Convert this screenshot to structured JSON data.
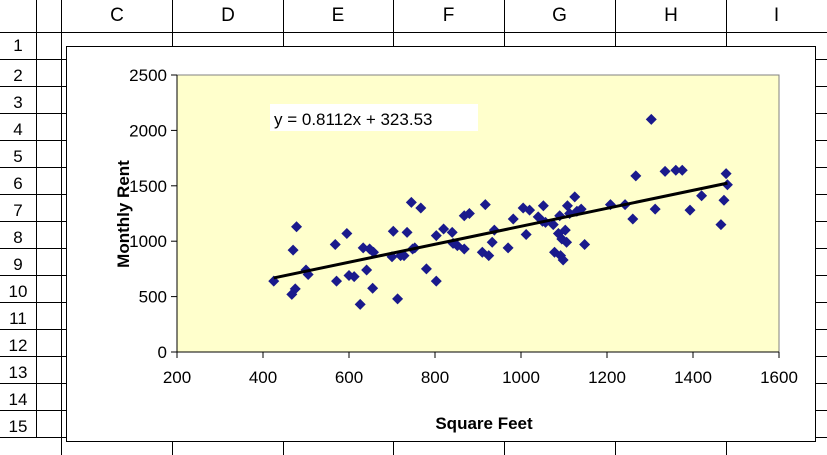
{
  "sheet": {
    "column_headers": [
      "C",
      "D",
      "E",
      "F",
      "G",
      "H",
      "I"
    ],
    "row_headers": [
      "1",
      "2",
      "3",
      "4",
      "5",
      "6",
      "7",
      "8",
      "9",
      "10",
      "11",
      "12",
      "13",
      "14",
      "15"
    ]
  },
  "colors": {
    "plot_area": "#ffffcc",
    "marker": "#1a1a8c",
    "trendline": "#000000"
  },
  "chart_data": {
    "type": "scatter",
    "title": "",
    "xlabel": "Square Feet",
    "ylabel": "Monthly Rent",
    "xlim": [
      200,
      1600
    ],
    "ylim": [
      0,
      2500
    ],
    "x_ticks": [
      "200",
      "400",
      "600",
      "800",
      "1000",
      "1200",
      "1400",
      "1600"
    ],
    "y_ticks": [
      "0",
      "500",
      "1000",
      "1500",
      "2000",
      "2500"
    ],
    "grid": false,
    "legend": "none",
    "marker": "diamond",
    "trendline": {
      "type": "linear",
      "slope": 0.8112,
      "intercept": 323.53,
      "x_range": [
        425,
        1480
      ],
      "equation_label": "y = 0.8112x + 323.53"
    },
    "points": [
      [
        425,
        640
      ],
      [
        467,
        520
      ],
      [
        470,
        920
      ],
      [
        475,
        570
      ],
      [
        478,
        1130
      ],
      [
        500,
        740
      ],
      [
        505,
        700
      ],
      [
        568,
        970
      ],
      [
        571,
        640
      ],
      [
        595,
        1070
      ],
      [
        600,
        690
      ],
      [
        612,
        680
      ],
      [
        626,
        430
      ],
      [
        633,
        940
      ],
      [
        641,
        740
      ],
      [
        648,
        930
      ],
      [
        655,
        575
      ],
      [
        657,
        900
      ],
      [
        700,
        860
      ],
      [
        703,
        1090
      ],
      [
        713,
        480
      ],
      [
        720,
        870
      ],
      [
        728,
        870
      ],
      [
        735,
        1080
      ],
      [
        745,
        1350
      ],
      [
        748,
        930
      ],
      [
        753,
        940
      ],
      [
        767,
        1300
      ],
      [
        780,
        750
      ],
      [
        803,
        640
      ],
      [
        803,
        1050
      ],
      [
        820,
        1110
      ],
      [
        840,
        1080
      ],
      [
        842,
        980
      ],
      [
        852,
        960
      ],
      [
        868,
        930
      ],
      [
        868,
        1230
      ],
      [
        880,
        1250
      ],
      [
        910,
        900
      ],
      [
        917,
        1330
      ],
      [
        925,
        870
      ],
      [
        933,
        990
      ],
      [
        938,
        1100
      ],
      [
        970,
        940
      ],
      [
        982,
        1200
      ],
      [
        1005,
        1300
      ],
      [
        1012,
        1060
      ],
      [
        1020,
        1280
      ],
      [
        1040,
        1220
      ],
      [
        1050,
        1180
      ],
      [
        1052,
        1320
      ],
      [
        1057,
        1170
      ],
      [
        1075,
        1150
      ],
      [
        1078,
        900
      ],
      [
        1087,
        1070
      ],
      [
        1090,
        1230
      ],
      [
        1092,
        870
      ],
      [
        1095,
        1020
      ],
      [
        1098,
        830
      ],
      [
        1103,
        1100
      ],
      [
        1106,
        990
      ],
      [
        1108,
        1320
      ],
      [
        1113,
        1250
      ],
      [
        1125,
        1400
      ],
      [
        1130,
        1270
      ],
      [
        1140,
        1290
      ],
      [
        1148,
        970
      ],
      [
        1208,
        1330
      ],
      [
        1242,
        1330
      ],
      [
        1260,
        1200
      ],
      [
        1267,
        1590
      ],
      [
        1303,
        2100
      ],
      [
        1312,
        1290
      ],
      [
        1335,
        1630
      ],
      [
        1360,
        1640
      ],
      [
        1375,
        1640
      ],
      [
        1393,
        1280
      ],
      [
        1420,
        1410
      ],
      [
        1465,
        1150
      ],
      [
        1472,
        1370
      ],
      [
        1477,
        1610
      ],
      [
        1480,
        1510
      ]
    ]
  }
}
